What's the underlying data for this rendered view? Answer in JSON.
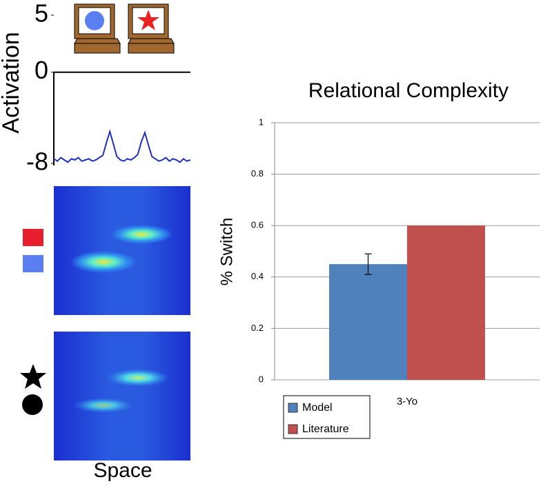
{
  "chart_data": [
    {
      "type": "line",
      "ylabel": "Activation",
      "xlabel": "Space",
      "values": [
        -7.6,
        -7.8,
        -7.5,
        -7.7,
        -7.9,
        -7.6,
        -7.7,
        -7.5,
        -7.8,
        -7.7,
        -7.6,
        -7.8,
        -7.7,
        -7.5,
        -7.3,
        -6.2,
        -5.2,
        -6.3,
        -7.4,
        -7.7,
        -7.8,
        -7.6,
        -7.7,
        -7.5,
        -7.2,
        -6.1,
        -5.3,
        -6.4,
        -7.4,
        -7.6,
        -7.8,
        -7.7,
        -7.5,
        -7.8,
        -7.6,
        -7.7,
        -7.9,
        -7.6,
        -7.8,
        -7.7
      ],
      "color": "#1f2fbf",
      "ylim": [
        -8,
        5
      ],
      "yticks": [
        5,
        0,
        -8
      ]
    },
    {
      "type": "bar",
      "title": "Relational Complexity",
      "ylabel": "% Switch",
      "categories": [
        "3-Yo"
      ],
      "series": [
        {
          "name": "Model",
          "color": "#4f81bd",
          "values": [
            0.45
          ],
          "errors": [
            0.04
          ]
        },
        {
          "name": "Literature",
          "color": "#c0504d",
          "values": [
            0.6
          ]
        }
      ],
      "ylim": [
        0,
        1
      ],
      "yticks": [
        0,
        0.2,
        0.4,
        0.6,
        0.8,
        1
      ],
      "grid": true,
      "legend": "bottom-left"
    }
  ]
}
